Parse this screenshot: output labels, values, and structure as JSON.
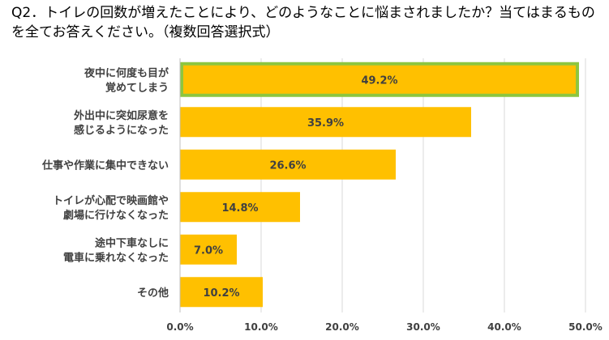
{
  "title": "Q2．トイレの回数が増えたことにより、どのようなことに悩まされましたか？当てはまるものを全てお答えください。（複数回答選択式）",
  "chart_data": {
    "type": "bar",
    "orientation": "horizontal",
    "categories": [
      [
        "夜中に何度も目が",
        "覚めてしまう"
      ],
      [
        "外出中に突如尿意を",
        "感じるようになった"
      ],
      [
        "仕事や作業に集中できない"
      ],
      [
        "トイレが心配で映画館や",
        "劇場に行けなくなった"
      ],
      [
        "途中下車なしに",
        "電車に乗れなくなった"
      ],
      [
        "その他"
      ]
    ],
    "values": [
      49.2,
      35.9,
      26.6,
      14.8,
      7.0,
      10.2
    ],
    "value_labels": [
      "49.2%",
      "35.9%",
      "26.6%",
      "14.8%",
      "7.0%",
      "10.2%"
    ],
    "xlim": [
      0,
      50
    ],
    "xticks": [
      0,
      10,
      20,
      30,
      40,
      50
    ],
    "xtick_labels": [
      "0.0%",
      "10.0%",
      "20.0%",
      "30.0%",
      "40.0%",
      "50.0%"
    ],
    "grid": true,
    "highlight_index": 0,
    "colors": {
      "bar": "#FFC000",
      "highlight_border": "#8DC63F",
      "grid": "#D9D9D9",
      "axis": "#BFBFBF",
      "text": "#404040"
    }
  }
}
